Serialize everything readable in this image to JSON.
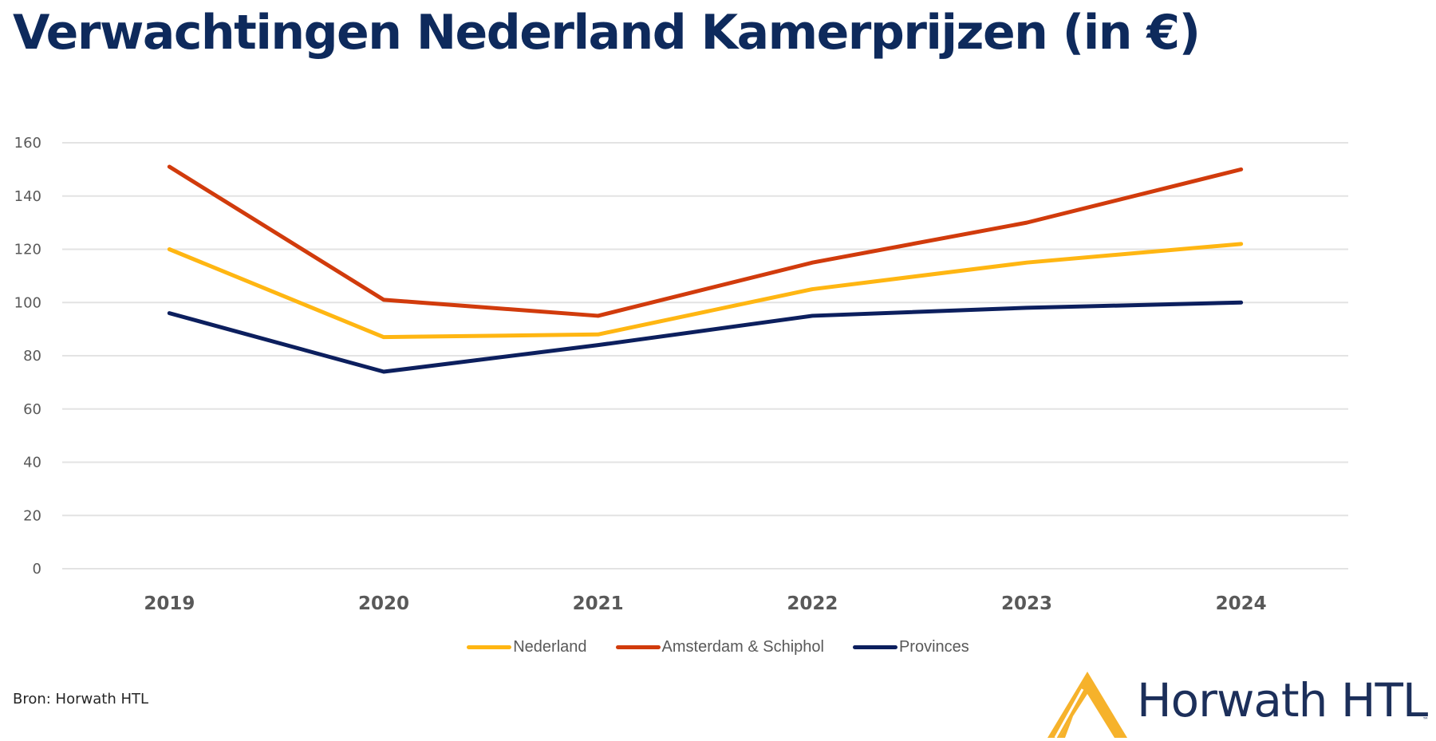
{
  "page": {
    "title": "Verwachtingen Nederland Kamerprijzen (in €)",
    "source": "Bron: Horwath HTL",
    "logo": {
      "text": "Horwath HTL",
      "tm": "™",
      "icon": "horwath-peak-icon"
    }
  },
  "chart_data": {
    "type": "line",
    "title": "Verwachtingen Nederland Kamerprijzen (in €)",
    "xlabel": "",
    "ylabel": "",
    "categories": [
      "2019",
      "2020",
      "2021",
      "2022",
      "2023",
      "2024"
    ],
    "ylim": [
      0,
      160
    ],
    "yticks": [
      "0",
      "20",
      "40",
      "60",
      "80",
      "100",
      "120",
      "140",
      "160"
    ],
    "grid": true,
    "legend_position": "bottom",
    "series": [
      {
        "name": "Nederland",
        "color": "#ffb612",
        "values": [
          120,
          87,
          88,
          105,
          115,
          122
        ]
      },
      {
        "name": "Amsterdam & Schiphol",
        "color": "#d13b0c",
        "values": [
          151,
          101,
          95,
          115,
          130,
          150
        ]
      },
      {
        "name": "Provinces",
        "color": "#0c1f5e",
        "values": [
          96,
          74,
          84,
          95,
          98,
          100
        ]
      }
    ]
  }
}
